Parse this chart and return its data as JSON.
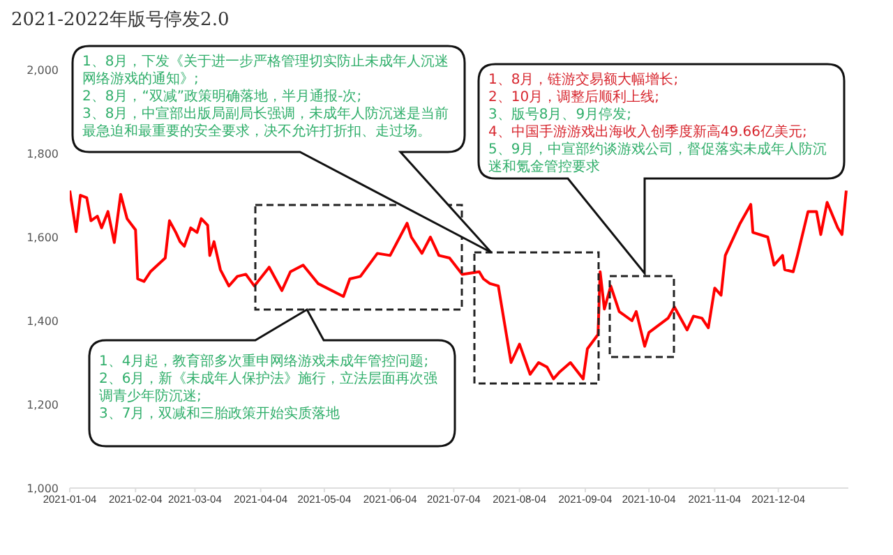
{
  "chart_data": {
    "type": "line",
    "title": "2021-2022年版号停发2.0",
    "x": [
      "2021-01-04",
      "2021-01-07",
      "2021-01-09",
      "2021-01-12",
      "2021-01-14",
      "2021-01-17",
      "2021-01-19",
      "2021-01-22",
      "2021-01-25",
      "2021-01-28",
      "2021-01-31",
      "2021-02-04",
      "2021-02-05",
      "2021-02-08",
      "2021-02-11",
      "2021-02-18",
      "2021-02-20",
      "2021-02-23",
      "2021-02-25",
      "2021-02-27",
      "2021-03-02",
      "2021-03-05",
      "2021-03-07",
      "2021-03-10",
      "2021-03-11",
      "2021-03-13",
      "2021-03-16",
      "2021-03-20",
      "2021-03-24",
      "2021-03-28",
      "2021-04-01",
      "2021-04-08",
      "2021-04-14",
      "2021-04-18",
      "2021-04-24",
      "2021-05-01",
      "2021-05-13",
      "2021-05-16",
      "2021-05-21",
      "2021-05-29",
      "2021-06-04",
      "2021-06-12",
      "2021-06-14",
      "2021-06-19",
      "2021-06-23",
      "2021-06-27",
      "2021-07-02",
      "2021-07-08",
      "2021-07-16",
      "2021-07-18",
      "2021-07-21",
      "2021-07-25",
      "2021-07-31",
      "2021-08-04",
      "2021-08-09",
      "2021-08-13",
      "2021-08-17",
      "2021-08-20",
      "2021-08-23",
      "2021-08-28",
      "2021-09-03",
      "2021-09-05",
      "2021-09-10",
      "2021-09-11",
      "2021-09-13",
      "2021-09-16",
      "2021-09-20",
      "2021-09-26",
      "2021-09-28",
      "2021-10-02",
      "2021-10-04",
      "2021-10-13",
      "2021-10-16",
      "2021-10-22",
      "2021-10-25",
      "2021-10-29",
      "2021-11-01",
      "2021-11-04",
      "2021-11-07",
      "2021-11-09",
      "2021-11-16",
      "2021-11-21",
      "2021-11-22",
      "2021-11-29",
      "2021-12-02",
      "2021-12-06",
      "2021-12-07",
      "2021-12-11",
      "2021-12-13",
      "2021-12-18",
      "2021-12-22",
      "2021-12-24",
      "2021-12-27",
      "2022-01-01",
      "2022-01-03",
      "2022-01-05"
    ],
    "series": [
      {
        "color": "#ff0000",
        "values": [
          1711,
          1613,
          1700,
          1694,
          1639,
          1650,
          1622,
          1661,
          1587,
          1702,
          1644,
          1617,
          1500,
          1494,
          1517,
          1550,
          1639,
          1611,
          1589,
          1578,
          1622,
          1611,
          1644,
          1628,
          1556,
          1589,
          1522,
          1483,
          1506,
          1511,
          1483,
          1528,
          1472,
          1517,
          1533,
          1489,
          1458,
          1500,
          1506,
          1561,
          1556,
          1633,
          1600,
          1561,
          1600,
          1556,
          1550,
          1511,
          1517,
          1500,
          1489,
          1483,
          1300,
          1344,
          1272,
          1300,
          1289,
          1261,
          1278,
          1300,
          1261,
          1333,
          1367,
          1517,
          1428,
          1483,
          1422,
          1400,
          1422,
          1339,
          1372,
          1406,
          1433,
          1378,
          1411,
          1406,
          1383,
          1478,
          1461,
          1556,
          1633,
          1678,
          1611,
          1600,
          1533,
          1556,
          1522,
          1517,
          1556,
          1661,
          1661,
          1606,
          1683,
          1622,
          1606,
          1711
        ]
      }
    ],
    "xlim": [
      "2021-01-04",
      "2022-01-06"
    ],
    "xticks": [
      "2021-01-04",
      "2021-02-04",
      "2021-03-04",
      "2021-04-04",
      "2021-05-04",
      "2021-06-04",
      "2021-07-04",
      "2021-08-04",
      "2021-09-04",
      "2021-10-04",
      "2021-11-04",
      "2021-12-04"
    ],
    "ylim": [
      1000,
      2000
    ],
    "yticks": [
      {
        "value": 1000,
        "label": "1,000"
      },
      {
        "value": 1200,
        "label": "1,200"
      },
      {
        "value": 1400,
        "label": "1,400"
      },
      {
        "value": 1600,
        "label": "1,600"
      },
      {
        "value": 1800,
        "label": "1,800"
      },
      {
        "value": 2000,
        "label": "2,000"
      }
    ],
    "annotations": [
      "1、8月，下发《关于进一步严格管理切实防止未成年人沉迷网络游戏的通知》;",
      "2、8月，“双减”政策明确落地，半月通报-次;",
      "3、8月，中宣部出版局副局长强调，未成年人防沉迷是当前最急迫和最重要的安全要求，决不允许打折扣、走过场。",
      "1、4月起，教育部多次重申网络游戏未成年管控问题;",
      "2、6月，新《未成年人保护法》施行，立法层面再次强调青少年防沉迷;",
      "3、7月，双减和三胎政策开始实质落地",
      "1、8月，链游交易额大幅增长;",
      "2、10月，调整后顺利上线;",
      "3、版号8月、9月停发;",
      "4、中国手游游戏出海收入创季度新高49.66亿美元;",
      "5、9月，中宣部约谈游戏公司，督促落实未成年人防沉迷和氪金管控要求"
    ]
  }
}
